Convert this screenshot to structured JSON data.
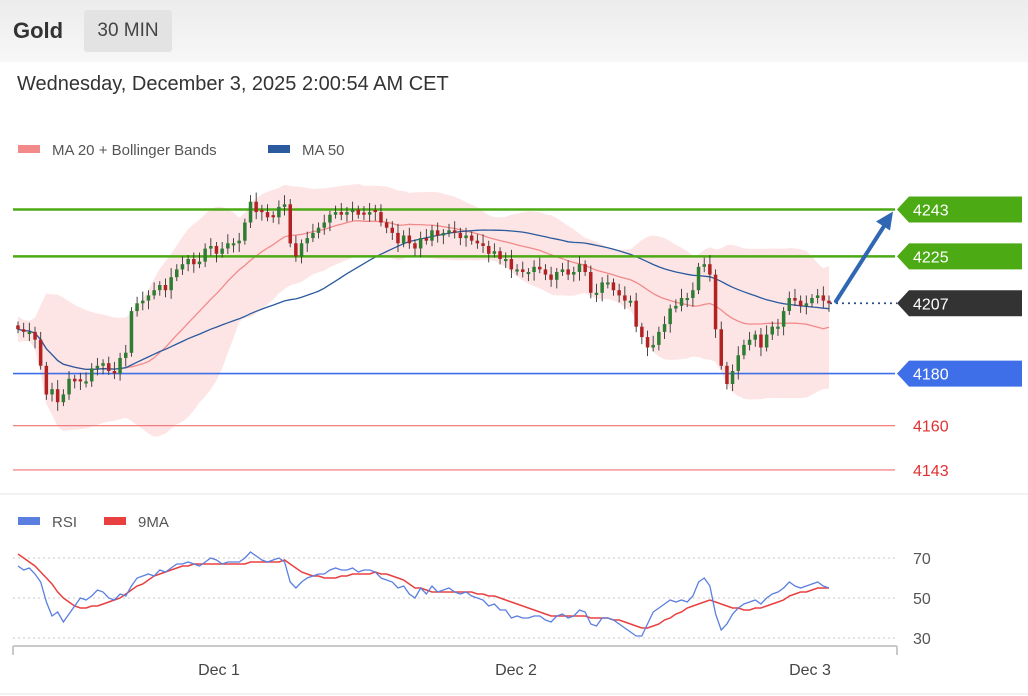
{
  "header": {
    "instrument": "Gold",
    "timeframe": "30 MIN"
  },
  "datetime": "Wednesday, December 3, 2025 2:00:54 AM CET",
  "colors": {
    "ma20": "#f28a8a",
    "ma50": "#2b5a9e",
    "band_fill": "#fde0e0",
    "up": "#2e7d32",
    "down": "#b22222",
    "resistance": "#4caa14",
    "support": "#3f6fe8",
    "minor": "#e85555",
    "rsi": "#5b7fe0",
    "rsi_ma": "#e84040",
    "arrow": "#2f67b2",
    "current": "#333333"
  },
  "chart_data": [
    {
      "type": "candlestick",
      "legend": [
        {
          "name": "MA 20 + Bollinger Bands",
          "color": "#f28a8a"
        },
        {
          "name": "MA 50",
          "color": "#2b5a9e"
        }
      ],
      "legend_position": "top-left",
      "x_ticks": [
        "Dec 1",
        "Dec 2",
        "Dec 3"
      ],
      "ylim": [
        4133,
        4262
      ],
      "candles_close": [
        4197,
        4196,
        4196,
        4193,
        4183,
        4172,
        4174,
        4169,
        4172,
        4178,
        4177,
        4177,
        4177,
        4182,
        4183,
        4184,
        4181,
        4180,
        4186,
        4188,
        4204,
        4207,
        4208,
        4210,
        4212,
        4214,
        4212,
        4217,
        4220,
        4222,
        4224,
        4222,
        4223,
        4228,
        4229,
        4226,
        4228,
        4230,
        4230,
        4231,
        4238,
        4246,
        4242,
        4242,
        4240,
        4240,
        4244,
        4245,
        4230,
        4225,
        4230,
        4232,
        4234,
        4236,
        4238,
        4241,
        4242,
        4241,
        4242,
        4243,
        4241,
        4241,
        4242,
        4242,
        4238,
        4236,
        4234,
        4230,
        4233,
        4230,
        4228,
        4232,
        4231,
        4235,
        4233,
        4234,
        4235,
        4234,
        4232,
        4233,
        4231,
        4230,
        4229,
        4226,
        4227,
        4224,
        4224,
        4220,
        4220,
        4219,
        4219,
        4221,
        4220,
        4218,
        4216,
        4219,
        4220,
        4218,
        4219,
        4222,
        4219,
        4211,
        4211,
        4215,
        4215,
        4212,
        4210,
        4208,
        4208,
        4198,
        4194,
        4190,
        4191,
        4196,
        4199,
        4205,
        4206,
        4209,
        4209,
        4212,
        4221,
        4222,
        4218,
        4197,
        4183,
        4176,
        4181,
        4187,
        4191,
        4193,
        4195,
        4190,
        4195,
        4198,
        4198,
        4204,
        4209,
        4208,
        4206,
        4207,
        4209,
        4210,
        4208,
        4207
      ],
      "levels": [
        {
          "value": 4243,
          "label": "4243",
          "kind": "resistance"
        },
        {
          "value": 4225,
          "label": "4225",
          "kind": "resistance"
        },
        {
          "value": 4207,
          "label": "4207",
          "kind": "current"
        },
        {
          "value": 4180,
          "label": "4180",
          "kind": "support"
        },
        {
          "value": 4160,
          "label": "4160",
          "kind": "minor"
        },
        {
          "value": 4143,
          "label": "4143",
          "kind": "minor"
        }
      ],
      "forecast_arrow": {
        "from": 4207,
        "to": 4243
      }
    },
    {
      "type": "line",
      "title": "RSI",
      "legend": [
        {
          "name": "RSI",
          "color": "#5b7fe0"
        },
        {
          "name": "9MA",
          "color": "#e84040"
        }
      ],
      "ylim": [
        20,
        80
      ],
      "reference_levels": [
        70,
        50,
        30
      ],
      "rsi": [
        66,
        64,
        65,
        62,
        58,
        48,
        41,
        43,
        38,
        42,
        46,
        50,
        49,
        51,
        54,
        53,
        50,
        49,
        52,
        51,
        56,
        60,
        61,
        62,
        61,
        64,
        63,
        65,
        67,
        67,
        68,
        67,
        66,
        68,
        70,
        69,
        67,
        68,
        68,
        68,
        70,
        73,
        71,
        69,
        68,
        69,
        70,
        68,
        58,
        55,
        58,
        60,
        61,
        62,
        62,
        64,
        65,
        64,
        64,
        65,
        63,
        64,
        64,
        63,
        60,
        59,
        58,
        55,
        56,
        52,
        50,
        55,
        52,
        56,
        53,
        54,
        55,
        53,
        52,
        53,
        51,
        50,
        49,
        46,
        47,
        44,
        44,
        40,
        41,
        40,
        40,
        41,
        41,
        39,
        38,
        41,
        42,
        40,
        41,
        44,
        43,
        37,
        36,
        40,
        40,
        39,
        37,
        35,
        33,
        31,
        31,
        37,
        43,
        45,
        47,
        49,
        48,
        49,
        48,
        51,
        58,
        60,
        56,
        42,
        34,
        37,
        42,
        45,
        47,
        48,
        49,
        47,
        50,
        52,
        53,
        55,
        58,
        56,
        55,
        56,
        57,
        58,
        56,
        55
      ],
      "ma9": [
        72,
        70,
        68,
        66,
        63,
        60,
        57,
        53,
        50,
        48,
        46,
        45,
        45,
        46,
        46,
        47,
        48,
        49,
        50,
        52,
        54,
        56,
        57,
        59,
        61,
        62,
        63,
        64,
        65,
        66,
        66,
        67,
        67,
        67,
        67,
        67,
        67,
        67,
        67,
        67,
        67,
        68,
        68,
        68,
        68,
        68,
        68,
        69,
        67,
        65,
        63,
        62,
        61,
        61,
        60,
        60,
        60,
        61,
        61,
        62,
        62,
        62,
        62,
        63,
        62,
        62,
        61,
        60,
        59,
        57,
        55,
        55,
        54,
        53,
        53,
        53,
        53,
        53,
        53,
        53,
        53,
        52,
        52,
        51,
        51,
        50,
        49,
        48,
        47,
        46,
        45,
        44,
        43,
        42,
        41,
        41,
        41,
        41,
        41,
        41,
        41,
        40,
        40,
        40,
        40,
        39,
        39,
        38,
        37,
        36,
        35,
        35,
        36,
        37,
        39,
        40,
        42,
        43,
        45,
        46,
        47,
        48,
        49,
        48,
        47,
        46,
        45,
        45,
        44,
        44,
        45,
        45,
        46,
        47,
        48,
        49,
        51,
        52,
        53,
        53,
        54,
        55,
        55,
        55
      ]
    }
  ]
}
